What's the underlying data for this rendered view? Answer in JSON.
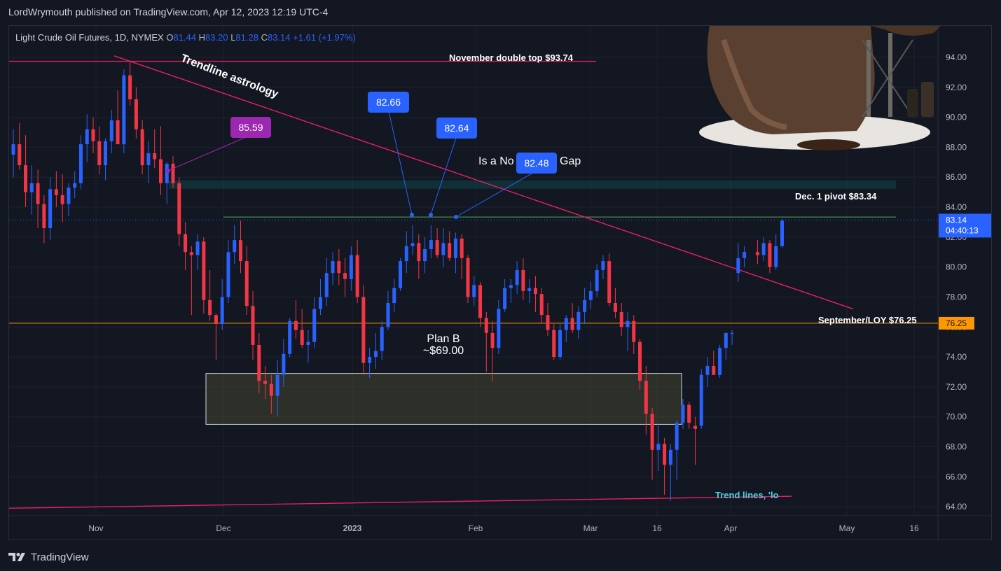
{
  "header": {
    "published": "LordWrymouth published on TradingView.com, Apr 12, 2023 12:19 UTC-4"
  },
  "legend": {
    "symbol": "Light Crude Oil Futures, 1D, NYMEX",
    "o_label": "O",
    "o_val": "81.44",
    "h_label": "H",
    "h_val": "83.20",
    "l_label": "L",
    "l_val": "81.28",
    "c_label": "C",
    "c_val": "83.14",
    "change": "+1.61 (+1.97%)"
  },
  "footer": {
    "brand": "TradingView"
  },
  "colors": {
    "up": "#2962ff",
    "down": "#f23645",
    "bg": "#131722",
    "grid": "#1e222d",
    "pink": "#e91e63",
    "orange": "#ff9800",
    "green": "#4caf50",
    "purple": "#9c27b0",
    "blue_label": "#2962ff"
  },
  "chart_data": {
    "type": "candlestick",
    "title": "Light Crude Oil Futures, 1D, NYMEX",
    "y_range": [
      63,
      95.5
    ],
    "y_ticks": [
      "94.00",
      "92.00",
      "90.00",
      "88.00",
      "86.00",
      "84.00",
      "82.00",
      "80.00",
      "78.00",
      "76.00",
      "74.00",
      "72.00",
      "70.00",
      "68.00",
      "66.00",
      "64.00"
    ],
    "x_ticks": [
      "Nov",
      "Dec",
      "2023",
      "Feb",
      "Mar",
      "16",
      "Apr",
      "May",
      "16"
    ],
    "last_price": {
      "value": "83.14",
      "countdown": "04:40:13"
    },
    "level_price": {
      "value": "76.25"
    },
    "candles": [
      [
        87.5,
        89.2,
        86.0,
        88.2
      ],
      [
        88.2,
        89.6,
        86.5,
        86.8
      ],
      [
        86.8,
        88.8,
        84.0,
        85.0
      ],
      [
        85.0,
        86.8,
        83.5,
        85.6
      ],
      [
        85.6,
        86.5,
        82.6,
        84.2
      ],
      [
        84.2,
        84.8,
        81.6,
        82.6
      ],
      [
        82.6,
        86.0,
        81.8,
        85.2
      ],
      [
        85.2,
        86.4,
        84.0,
        84.8
      ],
      [
        84.8,
        86.2,
        83.0,
        84.2
      ],
      [
        84.2,
        85.6,
        83.4,
        85.3
      ],
      [
        85.3,
        86.4,
        84.6,
        85.6
      ],
      [
        85.6,
        88.8,
        85.2,
        88.2
      ],
      [
        88.2,
        90.2,
        87.0,
        89.2
      ],
      [
        89.2,
        90.0,
        87.6,
        88.4
      ],
      [
        88.4,
        89.4,
        86.2,
        86.8
      ],
      [
        86.8,
        88.6,
        85.8,
        88.4
      ],
      [
        88.4,
        90.5,
        87.6,
        89.8
      ],
      [
        89.8,
        91.8,
        88.2,
        88.2
      ],
      [
        88.2,
        93.2,
        87.6,
        92.8
      ],
      [
        92.8,
        93.8,
        90.8,
        91.2
      ],
      [
        91.2,
        92.0,
        88.6,
        89.2
      ],
      [
        89.2,
        89.8,
        86.2,
        86.8
      ],
      [
        86.8,
        88.4,
        85.6,
        87.6
      ],
      [
        87.6,
        89.2,
        86.6,
        87.2
      ],
      [
        87.2,
        89.4,
        84.8,
        85.6
      ],
      [
        85.6,
        87.0,
        84.2,
        86.9
      ],
      [
        86.9,
        87.4,
        85.3,
        85.6
      ],
      [
        85.6,
        86.0,
        81.4,
        82.2
      ],
      [
        82.2,
        83.0,
        79.8,
        81.0
      ],
      [
        81.0,
        81.4,
        76.8,
        80.8
      ],
      [
        80.8,
        82.2,
        79.8,
        81.7
      ],
      [
        81.7,
        82.0,
        76.9,
        77.8
      ],
      [
        77.8,
        79.8,
        76.4,
        76.8
      ],
      [
        76.8,
        76.9,
        73.8,
        76.2
      ],
      [
        76.2,
        79.2,
        75.8,
        78.0
      ],
      [
        78.0,
        81.8,
        77.6,
        81.0
      ],
      [
        81.0,
        82.8,
        80.2,
        81.8
      ],
      [
        81.8,
        83.1,
        79.6,
        80.4
      ],
      [
        80.4,
        81.4,
        76.8,
        77.4
      ],
      [
        77.4,
        78.4,
        73.8,
        74.8
      ],
      [
        74.8,
        75.6,
        71.6,
        72.4
      ],
      [
        72.4,
        73.4,
        71.2,
        72.2
      ],
      [
        72.2,
        72.8,
        70.2,
        71.4
      ],
      [
        71.4,
        73.8,
        70.0,
        72.8
      ],
      [
        72.8,
        75.2,
        72.0,
        74.2
      ],
      [
        74.2,
        76.6,
        74.0,
        76.4
      ],
      [
        76.4,
        77.8,
        75.2,
        75.8
      ],
      [
        75.8,
        77.2,
        74.6,
        74.8
      ],
      [
        74.8,
        75.8,
        73.6,
        75.0
      ],
      [
        75.0,
        78.0,
        74.6,
        77.2
      ],
      [
        77.2,
        79.2,
        76.8,
        78.0
      ],
      [
        78.0,
        80.6,
        77.4,
        79.6
      ],
      [
        79.6,
        81.0,
        78.8,
        80.4
      ],
      [
        80.4,
        81.2,
        78.8,
        79.6
      ],
      [
        79.6,
        80.6,
        78.0,
        79.2
      ],
      [
        79.2,
        81.4,
        78.4,
        80.8
      ],
      [
        80.8,
        81.8,
        77.6,
        78.0
      ],
      [
        78.0,
        78.8,
        72.8,
        73.6
      ],
      [
        73.6,
        74.6,
        72.6,
        74.0
      ],
      [
        74.0,
        75.6,
        73.2,
        74.4
      ],
      [
        74.4,
        76.4,
        73.8,
        76.0
      ],
      [
        76.0,
        78.4,
        75.8,
        77.6
      ],
      [
        77.6,
        79.2,
        77.0,
        78.6
      ],
      [
        78.6,
        80.6,
        78.4,
        80.4
      ],
      [
        80.4,
        82.4,
        79.6,
        81.4
      ],
      [
        81.4,
        82.8,
        80.8,
        81.6
      ],
      [
        81.6,
        82.2,
        79.2,
        80.4
      ],
      [
        80.4,
        82.0,
        79.6,
        81.2
      ],
      [
        81.2,
        82.8,
        80.6,
        81.8
      ],
      [
        81.8,
        82.6,
        80.6,
        80.8
      ],
      [
        80.8,
        82.6,
        80.0,
        81.6
      ],
      [
        81.6,
        82.4,
        80.4,
        80.6
      ],
      [
        80.6,
        82.3,
        79.6,
        81.9
      ],
      [
        81.9,
        82.2,
        79.2,
        80.6
      ],
      [
        80.6,
        80.8,
        77.6,
        78.0
      ],
      [
        78.0,
        79.4,
        77.4,
        78.8
      ],
      [
        78.8,
        79.0,
        76.0,
        76.6
      ],
      [
        76.6,
        77.0,
        73.0,
        75.6
      ],
      [
        75.6,
        76.4,
        72.4,
        74.6
      ],
      [
        74.6,
        77.8,
        74.2,
        77.2
      ],
      [
        77.2,
        79.2,
        77.0,
        78.6
      ],
      [
        78.6,
        79.2,
        77.6,
        78.8
      ],
      [
        78.8,
        80.4,
        78.2,
        79.8
      ],
      [
        79.8,
        80.6,
        77.8,
        78.4
      ],
      [
        78.4,
        79.2,
        77.6,
        78.6
      ],
      [
        78.6,
        79.4,
        77.0,
        78.2
      ],
      [
        78.2,
        78.6,
        76.2,
        76.8
      ],
      [
        76.8,
        77.6,
        75.4,
        75.8
      ],
      [
        75.8,
        76.2,
        73.8,
        74.0
      ],
      [
        74.0,
        76.2,
        73.8,
        75.8
      ],
      [
        75.8,
        76.8,
        75.0,
        76.6
      ],
      [
        76.6,
        77.6,
        75.6,
        75.8
      ],
      [
        75.8,
        77.4,
        75.2,
        77.0
      ],
      [
        77.0,
        78.6,
        76.2,
        77.8
      ],
      [
        77.8,
        79.0,
        77.2,
        78.4
      ],
      [
        78.4,
        80.2,
        78.0,
        79.8
      ],
      [
        79.8,
        80.8,
        79.2,
        80.4
      ],
      [
        80.4,
        80.9,
        77.4,
        77.6
      ],
      [
        77.6,
        78.6,
        76.6,
        77.0
      ],
      [
        77.0,
        77.6,
        75.4,
        76.0
      ],
      [
        76.0,
        77.0,
        74.4,
        76.4
      ],
      [
        76.4,
        76.8,
        74.2,
        75.0
      ],
      [
        75.0,
        75.2,
        71.8,
        72.4
      ],
      [
        72.4,
        73.4,
        68.8,
        70.2
      ],
      [
        70.2,
        70.6,
        65.8,
        67.8
      ],
      [
        67.8,
        69.6,
        66.4,
        68.2
      ],
      [
        68.2,
        68.6,
        64.8,
        66.8
      ],
      [
        66.8,
        68.2,
        64.4,
        67.8
      ],
      [
        67.8,
        69.8,
        65.8,
        69.6
      ],
      [
        69.6,
        71.2,
        69.2,
        70.8
      ],
      [
        70.8,
        71.0,
        69.2,
        69.6
      ],
      [
        69.4,
        70.0,
        66.8,
        69.2
      ],
      [
        69.4,
        73.2,
        69.2,
        72.8
      ],
      [
        72.8,
        74.0,
        72.0,
        73.4
      ],
      [
        73.4,
        74.4,
        72.8,
        72.8
      ],
      [
        72.8,
        74.8,
        72.6,
        74.6
      ],
      [
        74.6,
        75.6,
        73.8,
        75.6
      ],
      [
        75.6,
        75.8,
        74.8,
        75.6
      ],
      [
        79.6,
        81.6,
        79.0,
        80.6
      ],
      [
        80.6,
        81.4,
        80.0,
        81.0
      ],
      [
        81.0,
        81.8,
        80.2,
        80.8
      ],
      [
        80.8,
        82.0,
        80.4,
        81.6
      ],
      [
        81.6,
        81.8,
        79.6,
        80.0
      ],
      [
        80.0,
        82.2,
        79.8,
        81.4
      ],
      [
        81.4,
        83.2,
        81.3,
        83.1
      ]
    ],
    "annotations": {
      "trendline_label": "Trendline astrology",
      "double_top": "November double top $93.74",
      "dec_pivot": "Dec. 1 pivot $83.34",
      "sept_loy": "September/LOY $76.25",
      "plan_b_1": "Plan B",
      "plan_b_2": "~$69.00",
      "gap_left": "Is a No",
      "gap_right": "Gap",
      "trend_lines": "Trend lines, 'lo",
      "tag_purple": "85.59",
      "tag_1": "82.66",
      "tag_2": "82.64",
      "tag_3": "82.48"
    },
    "levels": {
      "double_top": 93.74,
      "dec_pivot": 83.34,
      "sept_loy": 76.25,
      "gap_top": 85.6,
      "gap_bottom": 85.3,
      "planb_top": 72.9,
      "planb_bottom": 69.5
    },
    "grid": true
  }
}
